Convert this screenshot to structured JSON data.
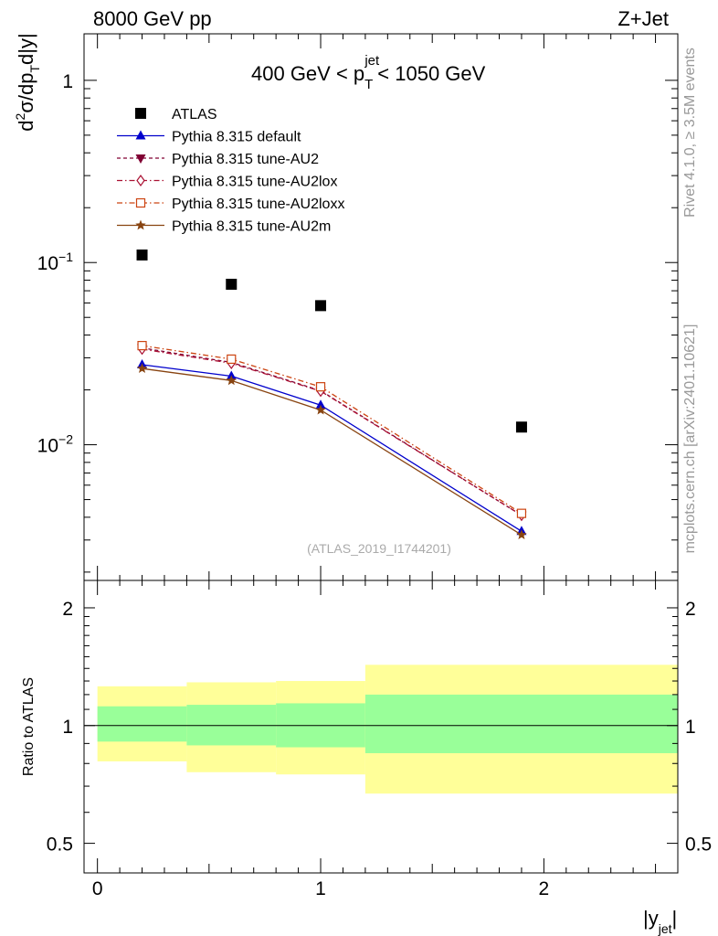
{
  "header": {
    "left": "8000 GeV pp",
    "right": "Z+Jet"
  },
  "side_labels": {
    "rivet": "Rivet 4.1.0, ≥ 3.5M events",
    "mcplots": "mcplots.cern.ch [arXiv:2401.10621]"
  },
  "colors": {
    "atlas": "#000000",
    "default": "#0000cc",
    "au2": "#800033",
    "au2lox": "#aa1133",
    "au2loxx": "#cc4411",
    "au2m": "#884411",
    "band_inner": "#99ff99",
    "band_outer": "#ffff99"
  },
  "chart_data": [
    {
      "type": "scatter",
      "title_parts": {
        "pre": "400 GeV < p",
        "sub": "T",
        "sup": "jet",
        "post": " < 1050 GeV"
      },
      "ylabel": "d²σ/dp_T d|y|",
      "yscale": "log",
      "ylim": [
        0.0018,
        1.8
      ],
      "xlim": [
        -0.06,
        2.6
      ],
      "y_ticks": [
        {
          "value": 1,
          "label_base": "1",
          "label_exp": ""
        },
        {
          "value": 0.1,
          "label_base": "10",
          "label_exp": "−1"
        },
        {
          "value": 0.01,
          "label_base": "10",
          "label_exp": "−2"
        }
      ],
      "watermark": "(ATLAS_2019_I1744201)",
      "x": [
        0.2,
        0.6,
        1.0,
        1.9
      ],
      "series": [
        {
          "key": "atlas",
          "name": "ATLAS",
          "values": [
            0.11,
            0.076,
            0.058,
            0.0125
          ],
          "marker": "square",
          "line": "none"
        },
        {
          "key": "default",
          "name": "Pythia 8.315 default",
          "values": [
            0.0275,
            0.0238,
            0.0165,
            0.00335
          ],
          "marker": "triangle",
          "line": "solid"
        },
        {
          "key": "au2",
          "name": "Pythia 8.315 tune-AU2",
          "values": [
            0.034,
            0.0283,
            0.0198,
            0.0041
          ],
          "marker": "triangle-down",
          "line": "dashed"
        },
        {
          "key": "au2lox",
          "name": "Pythia 8.315 tune-AU2lox",
          "values": [
            0.0335,
            0.028,
            0.0197,
            0.0041
          ],
          "marker": "diamond",
          "line": "dashdot"
        },
        {
          "key": "au2loxx",
          "name": "Pythia 8.315 tune-AU2loxx",
          "values": [
            0.035,
            0.0295,
            0.0208,
            0.0042
          ],
          "marker": "open-square",
          "line": "dashdot"
        },
        {
          "key": "au2m",
          "name": "Pythia 8.315 tune-AU2m",
          "values": [
            0.0262,
            0.0225,
            0.0155,
            0.0032
          ],
          "marker": "star",
          "line": "solid"
        }
      ]
    },
    {
      "type": "area",
      "ylabel": "Ratio to ATLAS",
      "yscale": "log",
      "ylim": [
        0.42,
        2.35
      ],
      "xlim": [
        -0.06,
        2.6
      ],
      "y_ticks": [
        {
          "value": 2,
          "label": "2"
        },
        {
          "value": 1,
          "label": "1"
        },
        {
          "value": 0.5,
          "label": "0.5"
        }
      ],
      "x_ticks": [
        {
          "value": 0,
          "label": "0"
        },
        {
          "value": 1,
          "label": "1"
        },
        {
          "value": 2,
          "label": "2"
        }
      ],
      "xlabel_parts": {
        "pre": "|y",
        "sub": "jet",
        "post": "|"
      },
      "bins": [
        {
          "x0": 0.0,
          "x1": 0.4,
          "inner": [
            0.91,
            1.12
          ],
          "outer": [
            0.81,
            1.26
          ]
        },
        {
          "x0": 0.4,
          "x1": 0.8,
          "inner": [
            0.89,
            1.13
          ],
          "outer": [
            0.76,
            1.29
          ]
        },
        {
          "x0": 0.8,
          "x1": 1.2,
          "inner": [
            0.88,
            1.14
          ],
          "outer": [
            0.75,
            1.3
          ]
        },
        {
          "x0": 1.2,
          "x1": 2.6,
          "inner": [
            0.85,
            1.2
          ],
          "outer": [
            0.67,
            1.43
          ]
        }
      ]
    }
  ]
}
